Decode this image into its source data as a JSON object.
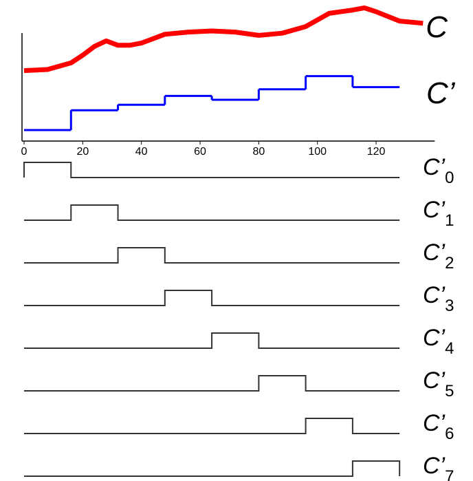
{
  "chart_data": {
    "type": "line",
    "xlim": [
      0,
      140
    ],
    "ylim": [
      0,
      12.5
    ],
    "xticks": [
      0,
      20,
      40,
      60,
      80,
      100,
      120
    ],
    "series": [
      {
        "name": "C",
        "color": "#ff0000",
        "x": [
          0,
          8,
          16,
          20,
          24,
          28,
          32,
          36,
          40,
          48,
          56,
          64,
          72,
          80,
          88,
          96,
          104,
          112,
          116,
          120,
          128,
          136
        ],
        "values": [
          6.4,
          6.5,
          7.1,
          7.8,
          8.6,
          9.1,
          8.7,
          8.7,
          8.9,
          9.7,
          9.9,
          10.0,
          9.9,
          9.6,
          9.8,
          10.4,
          11.6,
          11.9,
          12.1,
          11.75,
          10.9,
          10.7
        ]
      },
      {
        "name": "C’",
        "color": "#0000ff",
        "step_edges": [
          0,
          16,
          32,
          48,
          64,
          80,
          96,
          112,
          128
        ],
        "values": [
          1.0,
          2.8,
          3.3,
          4.1,
          3.75,
          4.7,
          5.9,
          4.9
        ]
      }
    ],
    "basis": [
      {
        "label": "C’",
        "subscript": "0"
      },
      {
        "label": "C’",
        "subscript": "1"
      },
      {
        "label": "C’",
        "subscript": "2"
      },
      {
        "label": "C’",
        "subscript": "3"
      },
      {
        "label": "C’",
        "subscript": "4"
      },
      {
        "label": "C’",
        "subscript": "5"
      },
      {
        "label": "C’",
        "subscript": "6"
      },
      {
        "label": "C’",
        "subscript": "7"
      }
    ]
  }
}
